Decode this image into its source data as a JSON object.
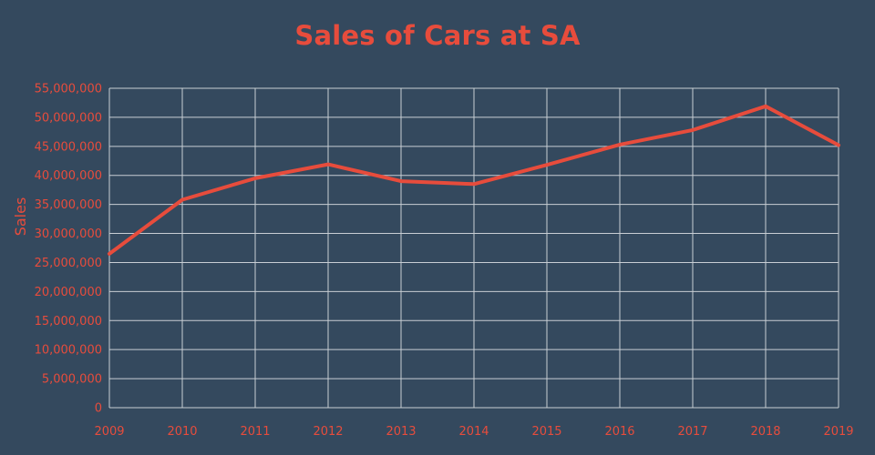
{
  "chart_data": {
    "type": "line",
    "title": "Sales of Cars at SA",
    "xlabel": "",
    "ylabel": "Sales",
    "x": [
      "2009",
      "2010",
      "2011",
      "2012",
      "2013",
      "2014",
      "2015",
      "2016",
      "2017",
      "2018",
      "2019"
    ],
    "y_ticks": [
      "0",
      "5,000,000",
      "10,000,000",
      "15,000,000",
      "20,000,000",
      "25,000,000",
      "30,000,000",
      "35,000,000",
      "40,000,000",
      "45,000,000",
      "50,000,000",
      "55,000,000"
    ],
    "ylim": [
      0,
      55000000
    ],
    "grid": true,
    "series": [
      {
        "values": [
          26500000,
          35800000,
          39500000,
          41900000,
          39000000,
          38500000,
          41800000,
          45300000,
          47800000,
          51900000,
          45200000
        ],
        "color": "#e74c3c"
      }
    ],
    "colors": {
      "background": "#34495e",
      "grid": "#c8ced4",
      "accent": "#e74c3c"
    }
  }
}
